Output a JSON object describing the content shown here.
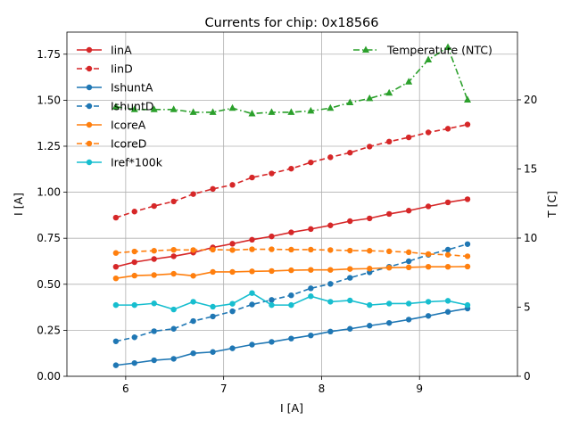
{
  "chart_data": {
    "type": "line",
    "title": "Currents for chip: 0x18566",
    "xlabel": "I [A]",
    "ylabel": "I [A]",
    "y2label": "T [C]",
    "xlim": [
      5.4,
      10.0
    ],
    "ylim": [
      0.0,
      1.87
    ],
    "y2lim": [
      0.0,
      24.9
    ],
    "xticks": [
      6,
      7,
      8,
      9
    ],
    "yticks": [
      0.0,
      0.25,
      0.5,
      0.75,
      1.0,
      1.25,
      1.5,
      1.75
    ],
    "y2ticks": [
      0,
      5,
      10,
      15,
      20
    ],
    "grid": true,
    "legend_left": "upper-left",
    "legend_right": "upper-right",
    "x": [
      5.9,
      6.09,
      6.29,
      6.49,
      6.69,
      6.89,
      7.09,
      7.29,
      7.49,
      7.69,
      7.89,
      8.09,
      8.29,
      8.49,
      8.69,
      8.89,
      9.09,
      9.29,
      9.49
    ],
    "series": [
      {
        "name": "IinA",
        "axis": "left",
        "color": "#d62728",
        "dash": "solid",
        "marker": "circle",
        "values": [
          0.595,
          0.62,
          0.637,
          0.652,
          0.672,
          0.7,
          0.72,
          0.742,
          0.76,
          0.782,
          0.8,
          0.82,
          0.843,
          0.858,
          0.882,
          0.9,
          0.923,
          0.945,
          0.962
        ]
      },
      {
        "name": "IinD",
        "axis": "left",
        "color": "#d62728",
        "dash": "dashed",
        "marker": "circle",
        "values": [
          0.862,
          0.895,
          0.925,
          0.95,
          0.99,
          1.018,
          1.04,
          1.08,
          1.102,
          1.128,
          1.162,
          1.19,
          1.215,
          1.248,
          1.275,
          1.298,
          1.325,
          1.345,
          1.368
        ]
      },
      {
        "name": "IshuntA",
        "axis": "left",
        "color": "#1f77b4",
        "dash": "solid",
        "marker": "circle",
        "values": [
          0.06,
          0.072,
          0.087,
          0.095,
          0.125,
          0.132,
          0.152,
          0.172,
          0.187,
          0.205,
          0.222,
          0.243,
          0.258,
          0.275,
          0.29,
          0.308,
          0.328,
          0.35,
          0.368
        ]
      },
      {
        "name": "IshuntD",
        "axis": "left",
        "color": "#1f77b4",
        "dash": "dashed",
        "marker": "circle",
        "values": [
          0.19,
          0.212,
          0.245,
          0.258,
          0.3,
          0.325,
          0.353,
          0.39,
          0.415,
          0.44,
          0.478,
          0.502,
          0.535,
          0.565,
          0.595,
          0.625,
          0.66,
          0.688,
          0.718
        ]
      },
      {
        "name": "IcoreA",
        "axis": "left",
        "color": "#ff7f0e",
        "dash": "solid",
        "marker": "circle",
        "values": [
          0.532,
          0.547,
          0.55,
          0.557,
          0.546,
          0.567,
          0.567,
          0.57,
          0.572,
          0.576,
          0.578,
          0.578,
          0.583,
          0.585,
          0.59,
          0.592,
          0.595,
          0.595,
          0.596
        ]
      },
      {
        "name": "IcoreD",
        "axis": "left",
        "color": "#ff7f0e",
        "dash": "dashed",
        "marker": "circle",
        "values": [
          0.67,
          0.678,
          0.682,
          0.687,
          0.686,
          0.688,
          0.686,
          0.69,
          0.69,
          0.688,
          0.688,
          0.686,
          0.683,
          0.682,
          0.679,
          0.674,
          0.664,
          0.66,
          0.652
        ]
      },
      {
        "name": "Iref*100k",
        "axis": "left",
        "color": "#17becf",
        "dash": "solid",
        "marker": "circle",
        "values": [
          0.387,
          0.387,
          0.396,
          0.363,
          0.405,
          0.378,
          0.394,
          0.452,
          0.387,
          0.387,
          0.435,
          0.405,
          0.412,
          0.387,
          0.395,
          0.395,
          0.405,
          0.41,
          0.387
        ]
      },
      {
        "name": "Temperature (NTC)",
        "axis": "right",
        "color": "#2ca02c",
        "dash": "dashdot",
        "marker": "triangle",
        "values": [
          19.5,
          19.3,
          19.3,
          19.3,
          19.1,
          19.1,
          19.4,
          19.0,
          19.1,
          19.1,
          19.2,
          19.4,
          19.8,
          20.1,
          20.5,
          21.3,
          22.9,
          23.8,
          20.0
        ]
      }
    ]
  }
}
